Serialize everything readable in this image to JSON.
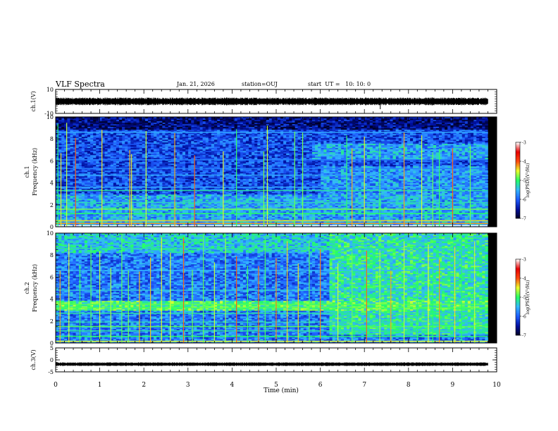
{
  "header": {
    "title": "VLF Spectra",
    "date": "Jan. 21, 2026",
    "station": "station=OUJ",
    "start": "start  UT =   10: 10: 0"
  },
  "colors": {
    "colormap": [
      "#000022",
      "#0010a0",
      "#1e5cff",
      "#33b6ff",
      "#22ff66",
      "#eaff2a",
      "#ff4a10",
      "#e80000",
      "#ffffff"
    ],
    "waveform": "#000000"
  },
  "chart_data": [
    {
      "type": "line",
      "panel": "ch1-waveform",
      "ylabel": "ch.1(V)",
      "ylim": [
        -10,
        10
      ],
      "yticks": [
        "10",
        "-10"
      ],
      "xlim": [
        0,
        10
      ],
      "trace": {
        "x": [
          0,
          9.8
        ],
        "amplitude_V": 2.5,
        "glitch_min": 7.36
      }
    },
    {
      "type": "heatmap",
      "panel": "ch1-spectrogram",
      "ylabel": "ch.1\nFrequency (kHz)",
      "ylim": [
        0,
        10
      ],
      "yticks": [
        "0",
        "2",
        "4",
        "6",
        "8",
        "10"
      ],
      "xlim": [
        0,
        10
      ],
      "data_end_min": 9.8,
      "colorbar": {
        "label": "log(PSD)(V²/Hz)",
        "range": [
          -7,
          -3
        ],
        "ticks": [
          "-3",
          "-4",
          "-5",
          "-6",
          "-7"
        ]
      },
      "base_level": -6.1,
      "bands": [
        {
          "f": 0.1,
          "level": -3.0
        },
        {
          "f": 0.3,
          "level": -4.2
        },
        {
          "f": 0.55,
          "level": -4.4
        },
        {
          "f": 1.2,
          "level": -5.0
        },
        {
          "f": 1.6,
          "level": -4.8
        },
        {
          "f": 2.2,
          "level": -5.3
        },
        {
          "f": 3.3,
          "level": -5.2
        },
        {
          "f": 3.6,
          "level": -5.6
        },
        {
          "f": 4.7,
          "level": -5.6
        },
        {
          "f": 5.3,
          "level": -5.8
        },
        {
          "f": 6.1,
          "level": -5.8
        },
        {
          "f": 8.6,
          "level": -5.6
        }
      ],
      "regions": [
        {
          "t0": 0.0,
          "t1": 9.8,
          "f0": 0.0,
          "f1": 3.0,
          "level": -5.6
        },
        {
          "t0": 5.8,
          "t1": 9.8,
          "f0": 6.2,
          "f1": 7.5,
          "level": -5.6
        },
        {
          "t0": 6.0,
          "t1": 9.8,
          "f0": 2.5,
          "f1": 5.5,
          "level": -5.7
        }
      ],
      "dark_band": {
        "f0": 8.8,
        "f1": 10.0,
        "level": -6.6
      },
      "spikes": [
        0.05,
        0.12,
        0.25,
        0.45,
        1.05,
        1.68,
        1.72,
        2.05,
        2.7,
        3.15,
        3.8,
        4.1,
        4.72,
        4.8,
        5.42,
        5.6,
        6.6,
        6.72,
        7.0,
        7.35,
        7.9,
        8.3,
        8.55,
        8.7,
        9.0,
        9.4
      ]
    },
    {
      "type": "heatmap",
      "panel": "ch2-spectrogram",
      "ylabel": "ch.2\nFrequency (kHz)",
      "ylim": [
        0,
        10
      ],
      "yticks": [
        "0",
        "2",
        "4",
        "6",
        "8",
        "10"
      ],
      "xlim": [
        0,
        10
      ],
      "data_end_min": 9.8,
      "colorbar": {
        "label": "log(PSD)(V²/Hz)",
        "range": [
          -7,
          -3
        ],
        "ticks": [
          "-3",
          "-4",
          "-5",
          "-6",
          "-7"
        ]
      },
      "base_level": -5.85,
      "bands": [
        {
          "f": 0.15,
          "level": -4.5
        },
        {
          "f": 0.6,
          "level": -5.0
        },
        {
          "f": 1.1,
          "level": -5.2
        },
        {
          "f": 1.5,
          "level": -4.9
        },
        {
          "f": 1.9,
          "level": -5.3
        },
        {
          "f": 2.7,
          "level": -5.2
        },
        {
          "f": 3.2,
          "level": -4.9
        },
        {
          "f": 3.5,
          "level": -4.9
        },
        {
          "f": 4.8,
          "level": -5.4
        },
        {
          "f": 6.6,
          "level": -5.5
        },
        {
          "f": 8.6,
          "level": -5.2
        }
      ],
      "regions": [
        {
          "t0": 0.0,
          "t1": 9.8,
          "f0": 8.2,
          "f1": 10.0,
          "level": -5.4
        },
        {
          "t0": 6.2,
          "t1": 9.8,
          "f0": 0.8,
          "f1": 10.0,
          "level": -5.2
        },
        {
          "t0": 0.0,
          "t1": 9.8,
          "f0": 3.0,
          "f1": 3.8,
          "level": -5.0
        },
        {
          "t0": 0.0,
          "t1": 6.2,
          "f0": 0.1,
          "f1": 0.7,
          "level": -6.8
        }
      ],
      "dark_band": null,
      "spikes": [
        0.1,
        0.3,
        0.55,
        0.8,
        1.0,
        1.25,
        1.5,
        1.65,
        1.9,
        2.15,
        2.4,
        2.6,
        2.9,
        3.1,
        3.35,
        3.6,
        3.85,
        4.1,
        4.35,
        4.6,
        4.75,
        5.0,
        5.25,
        5.5,
        5.75,
        6.0,
        6.4,
        6.72,
        7.05,
        7.35,
        7.6,
        7.9,
        8.2,
        8.45,
        8.55,
        8.7,
        9.05,
        9.2,
        9.5
      ]
    },
    {
      "type": "line",
      "panel": "ch3-waveform",
      "ylabel": "ch.3(V)",
      "ylim": [
        -5,
        5
      ],
      "yticks": [
        "5",
        "0",
        "-5"
      ],
      "xlim": [
        0,
        10
      ],
      "xlabel": "Time (min)",
      "xticks": [
        "0",
        "1",
        "2",
        "3",
        "4",
        "5",
        "6",
        "7",
        "8",
        "9",
        "10"
      ],
      "trace": {
        "x": [
          0,
          9.8
        ],
        "amplitude_V": 0.6,
        "offset_V": -1.8
      }
    }
  ]
}
